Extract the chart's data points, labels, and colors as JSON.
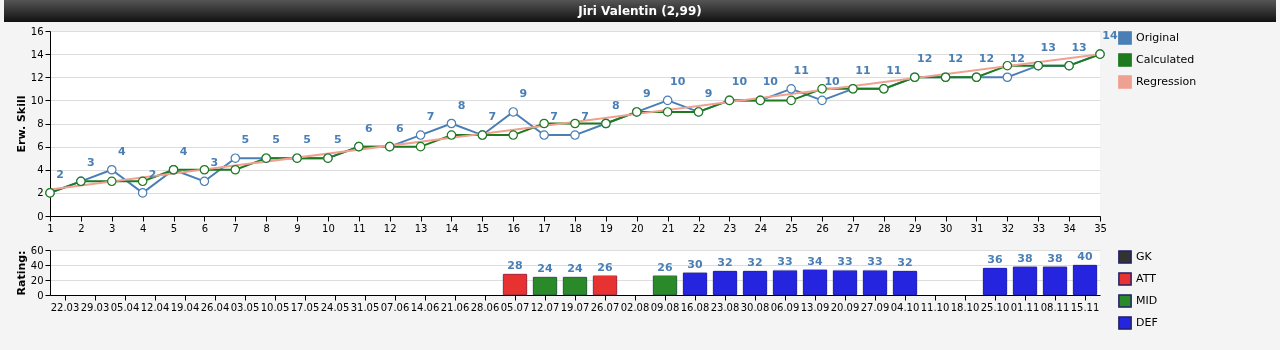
{
  "chart_data": [
    {
      "type": "line",
      "title": "Jiri Valentin (2,99)",
      "ylabel": "Erw. Skill",
      "x": [
        1,
        2,
        3,
        4,
        5,
        6,
        7,
        8,
        9,
        10,
        11,
        12,
        13,
        14,
        15,
        16,
        17,
        18,
        19,
        20,
        21,
        22,
        23,
        24,
        25,
        26,
        27,
        28,
        29,
        30,
        31,
        32,
        33,
        34,
        35
      ],
      "xlim": [
        1,
        35
      ],
      "xticks": [
        1,
        2,
        3,
        4,
        5,
        6,
        7,
        8,
        9,
        10,
        11,
        12,
        13,
        14,
        15,
        16,
        17,
        18,
        19,
        20,
        21,
        22,
        23,
        24,
        25,
        26,
        27,
        28,
        29,
        30,
        31,
        32,
        33,
        34,
        35
      ],
      "ylim": [
        0,
        16
      ],
      "yticks": [
        0,
        2,
        4,
        6,
        8,
        10,
        12,
        14,
        16
      ],
      "grid": "y",
      "legend": "right",
      "series": [
        {
          "name": "Original",
          "color": "#4a7fb5",
          "marker": "circle",
          "values": [
            2,
            3,
            4,
            2,
            4,
            3,
            5,
            5,
            5,
            5,
            6,
            6,
            7,
            8,
            7,
            9,
            7,
            7,
            8,
            9,
            10,
            9,
            10,
            10,
            11,
            10,
            11,
            11,
            12,
            12,
            12,
            12,
            13,
            13,
            14
          ],
          "value_labels": [
            "2",
            "3",
            "4",
            "2",
            "4",
            "3",
            "5",
            "5",
            "5",
            "5",
            "6",
            "6",
            "7",
            "8",
            "7",
            "9",
            "7",
            "7",
            "8",
            "9",
            "10",
            "9",
            "10",
            "10",
            "11",
            "10",
            "11",
            "11",
            "12",
            "12",
            "12",
            "12",
            "13",
            "13",
            "14"
          ]
        },
        {
          "name": "Calculated",
          "color": "#1e7a1e",
          "marker": "circle",
          "values": [
            2,
            3,
            3,
            3,
            4,
            4,
            4,
            5,
            5,
            5,
            6,
            6,
            6,
            7,
            7,
            7,
            8,
            8,
            8,
            9,
            9,
            9,
            10,
            10,
            10,
            11,
            11,
            11,
            12,
            12,
            12,
            13,
            13,
            13,
            14
          ]
        },
        {
          "name": "Regression",
          "color": "#f0a090",
          "marker": "none",
          "x": [
            1,
            35
          ],
          "values": [
            2.3,
            14
          ]
        }
      ]
    },
    {
      "type": "bar",
      "ylabel": "Rating:",
      "categories": [
        "22.03",
        "29.03",
        "05.04",
        "12.04",
        "19.04",
        "26.04",
        "03.05",
        "10.05",
        "17.05",
        "24.05",
        "31.05",
        "07.06",
        "14.06",
        "21.06",
        "28.06",
        "05.07",
        "12.07",
        "19.07",
        "26.07",
        "02.08",
        "09.08",
        "16.08",
        "23.08",
        "30.08",
        "06.09",
        "13.09",
        "20.09",
        "27.09",
        "04.10",
        "11.10",
        "18.10",
        "25.10",
        "01.11",
        "08.11",
        "15.11"
      ],
      "ylim": [
        0,
        60
      ],
      "yticks": [
        0,
        20,
        40,
        60
      ],
      "grid": "y",
      "legend": "right",
      "data_labels": true,
      "series": [
        {
          "name": "GK",
          "color": "#333333",
          "values": [
            null,
            null,
            null,
            null,
            null,
            null,
            null,
            null,
            null,
            null,
            null,
            null,
            null,
            null,
            null,
            null,
            null,
            null,
            null,
            null,
            null,
            null,
            null,
            null,
            null,
            null,
            null,
            null,
            null,
            null,
            null,
            null,
            null,
            null,
            null
          ]
        },
        {
          "name": "ATT",
          "color": "#e83232",
          "values": [
            null,
            null,
            null,
            null,
            null,
            null,
            null,
            null,
            null,
            null,
            null,
            null,
            null,
            null,
            null,
            28,
            null,
            null,
            26,
            null,
            null,
            null,
            null,
            null,
            null,
            null,
            null,
            null,
            null,
            null,
            null,
            null,
            null,
            null,
            null
          ]
        },
        {
          "name": "MID",
          "color": "#2a8a2a",
          "values": [
            null,
            null,
            null,
            null,
            null,
            null,
            null,
            null,
            null,
            null,
            null,
            null,
            null,
            null,
            null,
            null,
            24,
            24,
            null,
            null,
            26,
            null,
            null,
            null,
            null,
            null,
            null,
            null,
            null,
            null,
            null,
            null,
            null,
            null,
            null
          ]
        },
        {
          "name": "DEF",
          "color": "#2525e0",
          "values": [
            null,
            null,
            null,
            null,
            null,
            null,
            null,
            null,
            null,
            null,
            null,
            null,
            null,
            null,
            null,
            null,
            null,
            null,
            null,
            null,
            null,
            30,
            32,
            32,
            33,
            34,
            33,
            33,
            32,
            null,
            null,
            36,
            38,
            38,
            40
          ]
        }
      ]
    }
  ]
}
